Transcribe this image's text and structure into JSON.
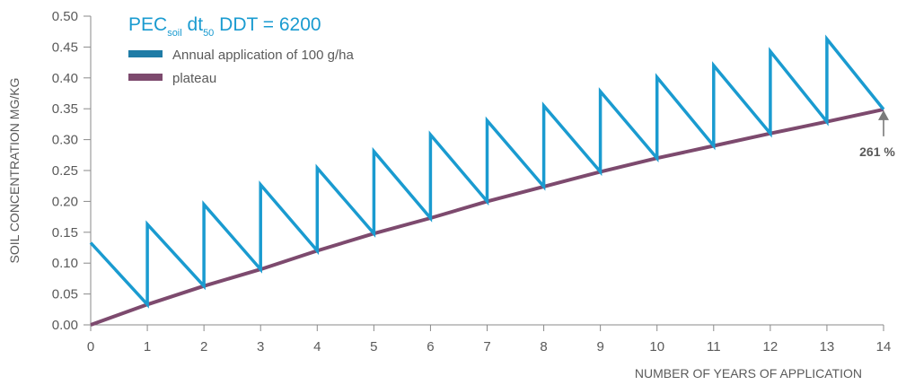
{
  "chart_data": {
    "type": "line",
    "title": {
      "pre": "PEC",
      "sub1": "soil",
      "mid": " dt",
      "sub2": "50",
      "post": " DDT = 6200"
    },
    "ylabel": "SOIL CONCENTRATION MG/KG",
    "xlabel": "NUMBER OF YEARS OF APPLICATION",
    "xlim": [
      0,
      14
    ],
    "ylim": [
      0,
      0.5
    ],
    "x_ticks": [
      "0",
      "1",
      "2",
      "3",
      "4",
      "5",
      "6",
      "7",
      "8",
      "9",
      "10",
      "11",
      "12",
      "13",
      "14"
    ],
    "y_ticks": [
      "0.50",
      "0.45",
      "0.40",
      "0.35",
      "0.30",
      "0.25",
      "0.20",
      "0.15",
      "0.10",
      "0.05",
      "0.00"
    ],
    "grid": false,
    "legend_position": "top-left",
    "series": [
      {
        "name": "Annual application of 100 g/ha",
        "color": "#1a9bd0",
        "x": [
          0,
          1,
          1,
          2,
          2,
          3,
          3,
          4,
          4,
          5,
          5,
          6,
          6,
          7,
          7,
          8,
          8,
          9,
          9,
          10,
          10,
          11,
          11,
          12,
          12,
          13,
          13,
          14
        ],
        "y": [
          0.133,
          0.033,
          0.163,
          0.063,
          0.195,
          0.09,
          0.227,
          0.12,
          0.254,
          0.148,
          0.281,
          0.173,
          0.308,
          0.2,
          0.331,
          0.224,
          0.355,
          0.248,
          0.378,
          0.27,
          0.401,
          0.29,
          0.42,
          0.31,
          0.443,
          0.329,
          0.463,
          0.349
        ]
      },
      {
        "name": "plateau",
        "color": "#7d4a6e",
        "x": [
          0,
          1,
          2,
          3,
          4,
          5,
          6,
          7,
          8,
          9,
          10,
          11,
          12,
          13,
          14
        ],
        "y": [
          0,
          0.033,
          0.063,
          0.09,
          0.12,
          0.148,
          0.173,
          0.2,
          0.224,
          0.248,
          0.27,
          0.29,
          0.31,
          0.329,
          0.349
        ]
      }
    ],
    "annotations": [
      {
        "text": "261 %",
        "x": 14,
        "y": 0.349,
        "arrow": true
      }
    ]
  }
}
